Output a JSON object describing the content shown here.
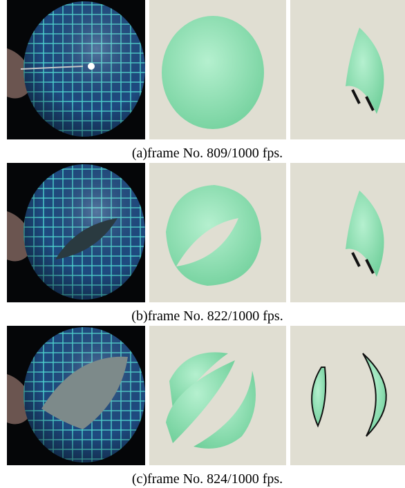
{
  "rows": [
    {
      "caption": "(a)frame No. 809/1000 fps."
    },
    {
      "caption": "(b)frame No. 822/1000 fps."
    },
    {
      "caption": "(c)frame No. 824/1000 fps."
    }
  ]
}
